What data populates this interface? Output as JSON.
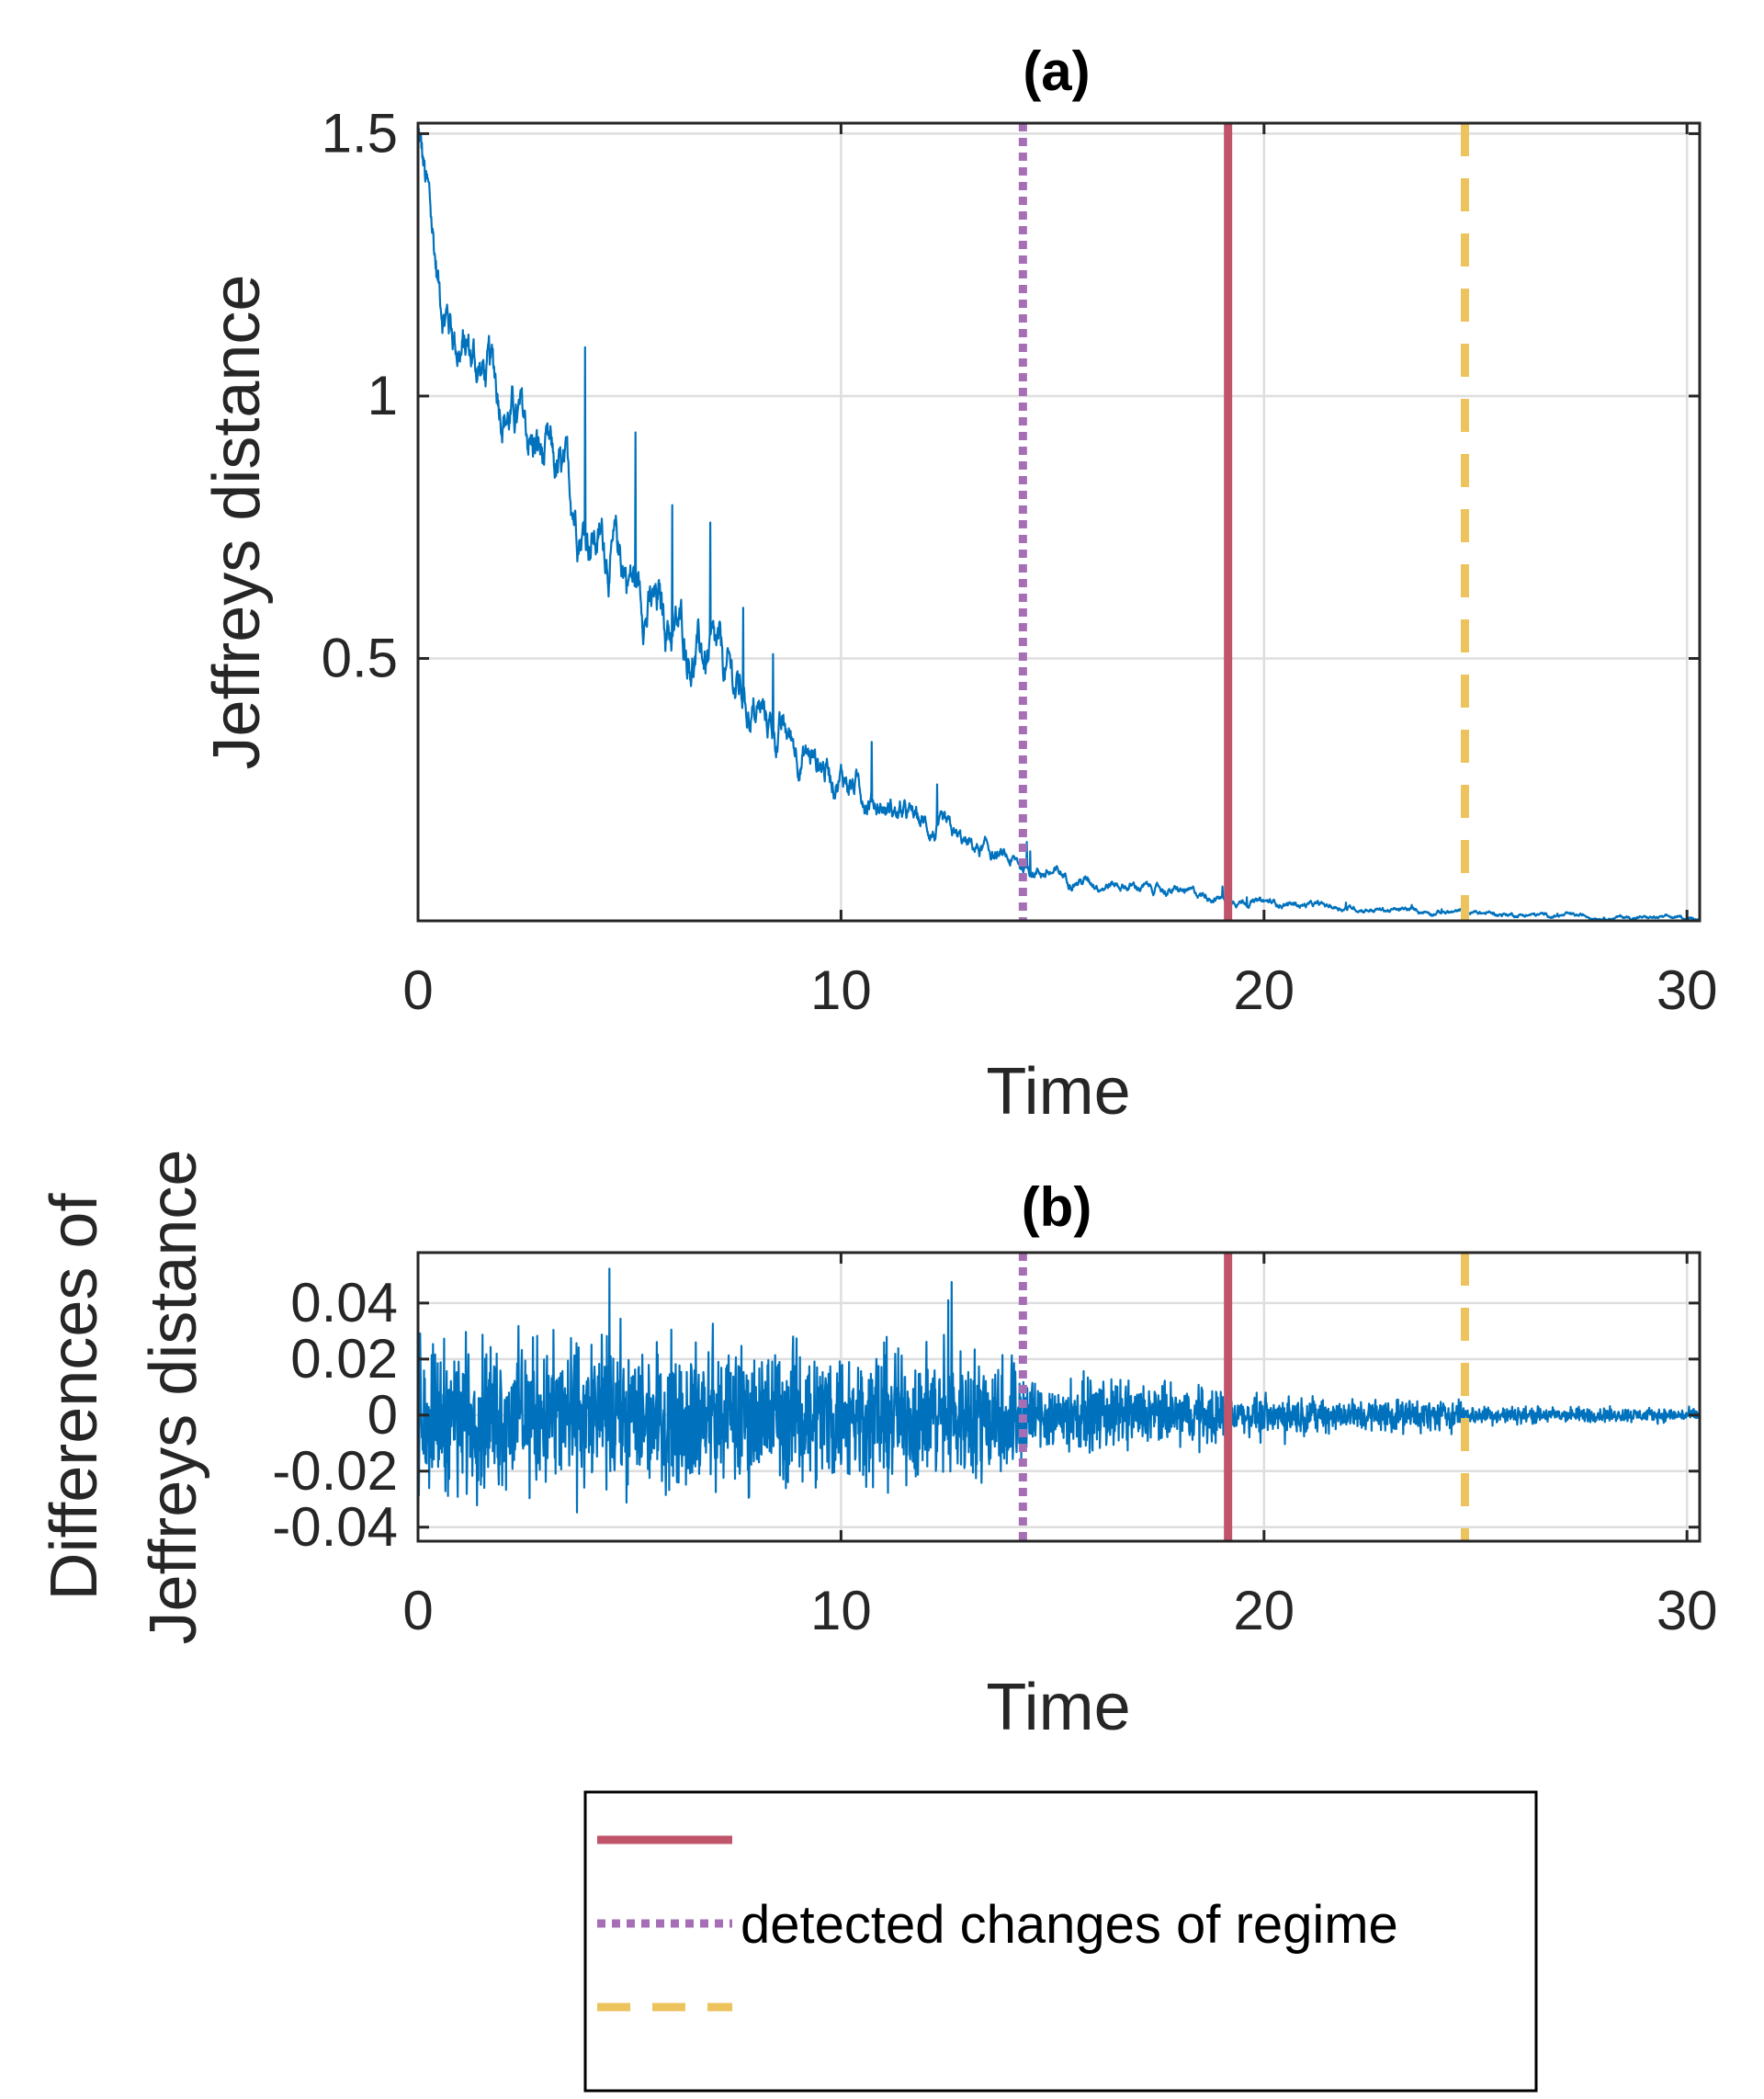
{
  "chart_data": [
    {
      "type": "line",
      "panel": "a",
      "title": "(a)",
      "xlabel": "Time",
      "ylabel": "Jeffreys distance",
      "xlim": [
        0,
        30.3
      ],
      "ylim": [
        0,
        1.52
      ],
      "xticks": [
        0,
        10,
        20,
        30
      ],
      "xtick_labels": [
        "0",
        "10",
        "20",
        "30"
      ],
      "yticks": [
        0.5,
        1,
        1.5
      ],
      "ytick_labels": [
        "0.5",
        "1",
        "1.5"
      ],
      "grid": true,
      "series": [
        {
          "name": "Jeffreys distance",
          "color": "#0072BD",
          "x": [
            0,
            0.5,
            1,
            1.5,
            2,
            2.5,
            3,
            3.5,
            4,
            4.5,
            5,
            5.5,
            6,
            6.5,
            7,
            7.5,
            8,
            8.5,
            9,
            9.5,
            10,
            10.5,
            11,
            11.5,
            12,
            12.5,
            13,
            13.5,
            14,
            14.5,
            15,
            15.5,
            16,
            16.5,
            17,
            17.5,
            18,
            18.5,
            19,
            19.5,
            20,
            21,
            22,
            23,
            24,
            25,
            26,
            27,
            28,
            29,
            30,
            30.3
          ],
          "y": [
            1.5,
            1.2,
            1.1,
            1.05,
            1.0,
            0.93,
            0.87,
            0.81,
            0.76,
            0.71,
            0.66,
            0.6,
            0.56,
            0.52,
            0.48,
            0.44,
            0.4,
            0.36,
            0.33,
            0.3,
            0.28,
            0.25,
            0.22,
            0.2,
            0.18,
            0.16,
            0.14,
            0.13,
            0.11,
            0.1,
            0.09,
            0.08,
            0.075,
            0.07,
            0.065,
            0.06,
            0.055,
            0.05,
            0.045,
            0.04,
            0.035,
            0.03,
            0.025,
            0.02,
            0.018,
            0.015,
            0.012,
            0.01,
            0.008,
            0.006,
            0.005,
            0.005
          ]
        }
      ],
      "vlines": [
        {
          "name": "vline-purple-dotted",
          "x": 14.3,
          "color": "#A66FB5",
          "style": "dotted"
        },
        {
          "name": "vline-red-solid",
          "x": 19.15,
          "color": "#C0546A",
          "style": "solid"
        },
        {
          "name": "vline-yellow-dashed",
          "x": 24.75,
          "color": "#EDC35E",
          "style": "dashed"
        }
      ]
    },
    {
      "type": "line",
      "panel": "b",
      "title": "(b)",
      "xlabel": "Time",
      "ylabel_lines": [
        "Differences of",
        "Jeffreys distance"
      ],
      "xlim": [
        0,
        30.3
      ],
      "ylim": [
        -0.045,
        0.058
      ],
      "xticks": [
        0,
        10,
        20,
        30
      ],
      "xtick_labels": [
        "0",
        "10",
        "20",
        "30"
      ],
      "yticks": [
        -0.04,
        -0.02,
        0,
        0.02,
        0.04
      ],
      "ytick_labels": [
        "-0.04",
        "-0.02",
        "0",
        "0.02",
        "0.04"
      ],
      "grid": true,
      "series": [
        {
          "name": "Differences of Jeffreys distance",
          "color": "#0072BD",
          "amplitude_envelope": {
            "x": [
              0,
              5,
              10,
              14.3,
              14.4,
              19.15,
              19.2,
              24.75,
              24.8,
              30.3
            ],
            "amp": [
              0.024,
              0.024,
              0.022,
              0.02,
              0.012,
              0.009,
              0.006,
              0.005,
              0.003,
              0.002
            ]
          }
        }
      ],
      "vlines": [
        {
          "name": "vline-purple-dotted",
          "x": 14.3,
          "color": "#A66FB5",
          "style": "dotted"
        },
        {
          "name": "vline-red-solid",
          "x": 19.15,
          "color": "#C0546A",
          "style": "solid"
        },
        {
          "name": "vline-yellow-dashed",
          "x": 24.75,
          "color": "#EDC35E",
          "style": "dashed"
        }
      ]
    }
  ],
  "legend": {
    "placement": "bottom-center",
    "entries": [
      {
        "name": "legend-red-solid",
        "color": "#C0546A",
        "style": "solid",
        "label": ""
      },
      {
        "name": "legend-purple-dotted",
        "color": "#A66FB5",
        "style": "dotted",
        "label": "detected changes of regime"
      },
      {
        "name": "legend-yellow-dashed",
        "color": "#EDC35E",
        "style": "dashed",
        "label": ""
      }
    ]
  }
}
